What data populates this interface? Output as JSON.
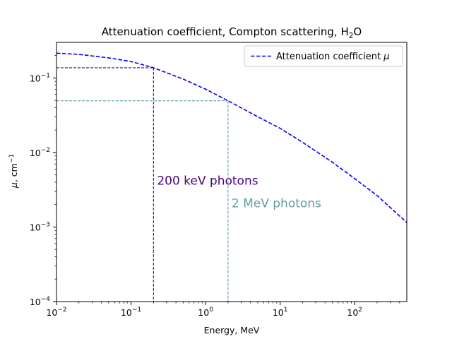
{
  "chart_data": {
    "type": "line",
    "title": {
      "main": "Attenuation coefficient, Compton scattering, H",
      "sub": "2",
      "tail": "O"
    },
    "xlabel": "Energy, MeV",
    "ylabel": {
      "symbol": "μ",
      "text": ", cm",
      "sup": "−1"
    },
    "xscale": "log",
    "yscale": "log",
    "xlim": [
      0.01,
      500
    ],
    "ylim": [
      0.0001,
      0.3
    ],
    "x_ticks": [
      {
        "value": 0.01,
        "base": "10",
        "exp": "−2"
      },
      {
        "value": 0.1,
        "base": "10",
        "exp": "−1"
      },
      {
        "value": 1,
        "base": "10",
        "exp": "0"
      },
      {
        "value": 10,
        "base": "10",
        "exp": "1"
      },
      {
        "value": 100,
        "base": "10",
        "exp": "2"
      }
    ],
    "y_ticks": [
      {
        "value": 0.0001,
        "base": "10",
        "exp": "−4"
      },
      {
        "value": 0.001,
        "base": "10",
        "exp": "−3"
      },
      {
        "value": 0.01,
        "base": "10",
        "exp": "−2"
      },
      {
        "value": 0.1,
        "base": "10",
        "exp": "−1"
      }
    ],
    "grid": false,
    "legend": {
      "placement": "top-right",
      "entries": [
        {
          "label": "Attenuation coefficient ",
          "symbol": "μ",
          "color": "#0000ff",
          "style": "dashed"
        }
      ]
    },
    "series": [
      {
        "name": "Attenuation coefficient μ",
        "color": "#0000ff",
        "style": "dashed",
        "x": [
          0.01,
          0.02,
          0.05,
          0.1,
          0.2,
          0.5,
          1,
          2,
          5,
          10,
          20,
          50,
          100,
          200,
          500
        ],
        "y": [
          0.215,
          0.207,
          0.186,
          0.166,
          0.137,
          0.0966,
          0.0707,
          0.0494,
          0.0302,
          0.0211,
          0.0137,
          0.00742,
          0.00446,
          0.00264,
          0.00115
        ]
      }
    ],
    "annotations": [
      {
        "text": "200 keV photons",
        "x": 0.2,
        "y": 0.137,
        "color": "#4b0082",
        "label_y": 0.0042
      },
      {
        "text": "2 MeV photons",
        "x": 2,
        "y": 0.0494,
        "color": "#5f9ea0",
        "label_y": 0.0021
      }
    ]
  }
}
